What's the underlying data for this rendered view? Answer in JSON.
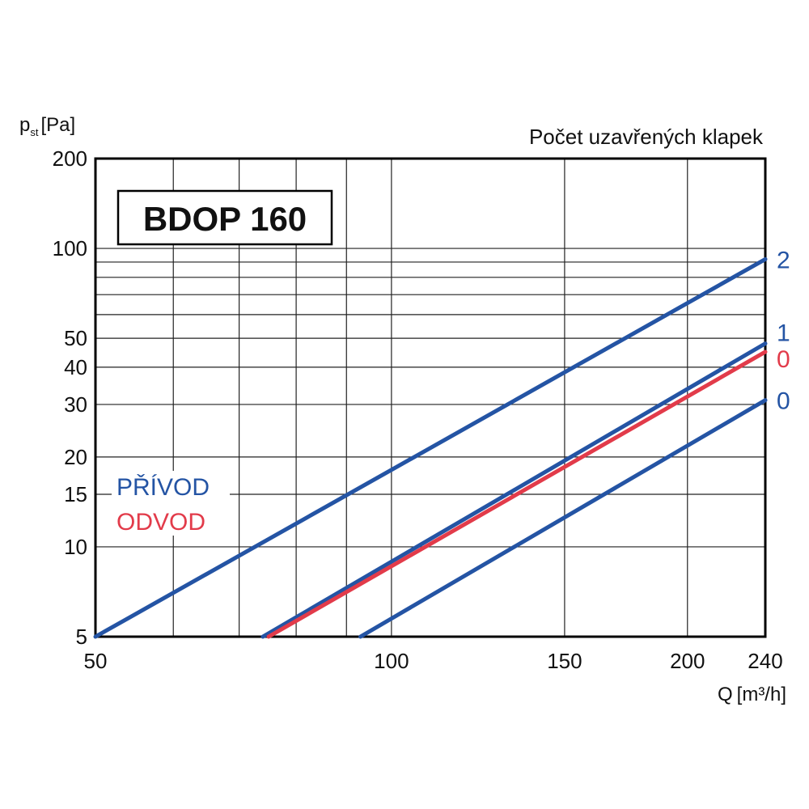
{
  "chart_data": {
    "type": "line",
    "title": "BDOP 160",
    "subtitle": "Počet uzavřených klapek",
    "xlabel": "Q",
    "xlabel_unit": "[m³/h]",
    "ylabel": "p",
    "ylabel_sub": "st",
    "ylabel_unit": "[Pa]",
    "x_scale": "log",
    "y_scale": "log",
    "xlim": [
      50,
      240
    ],
    "ylim": [
      5,
      200
    ],
    "grid": true,
    "x_ticks": [
      50,
      100,
      150,
      200,
      240
    ],
    "y_ticks": [
      5,
      10,
      15,
      20,
      30,
      40,
      50,
      100,
      200
    ],
    "x_grid": [
      50,
      60,
      70,
      80,
      90,
      100,
      150,
      200,
      240
    ],
    "y_grid": [
      5,
      10,
      15,
      20,
      30,
      40,
      50,
      60,
      70,
      80,
      90,
      100,
      200
    ],
    "legend": [
      {
        "label": "PŘÍVOD",
        "color": "#2454a4"
      },
      {
        "label": "ODVOD",
        "color": "#e23b4a"
      }
    ],
    "series": [
      {
        "label": "2",
        "color": "#2454a4",
        "points": [
          [
            50,
            5
          ],
          [
            240,
            92
          ]
        ]
      },
      {
        "label": "1",
        "color": "#2454a4",
        "points": [
          [
            74,
            5
          ],
          [
            240,
            48
          ]
        ]
      },
      {
        "label": "0",
        "color": "#e23b4a",
        "points": [
          [
            75,
            5
          ],
          [
            240,
            45
          ]
        ]
      },
      {
        "label": "0",
        "color": "#2454a4",
        "points": [
          [
            93,
            5
          ],
          [
            240,
            31
          ]
        ]
      }
    ]
  }
}
